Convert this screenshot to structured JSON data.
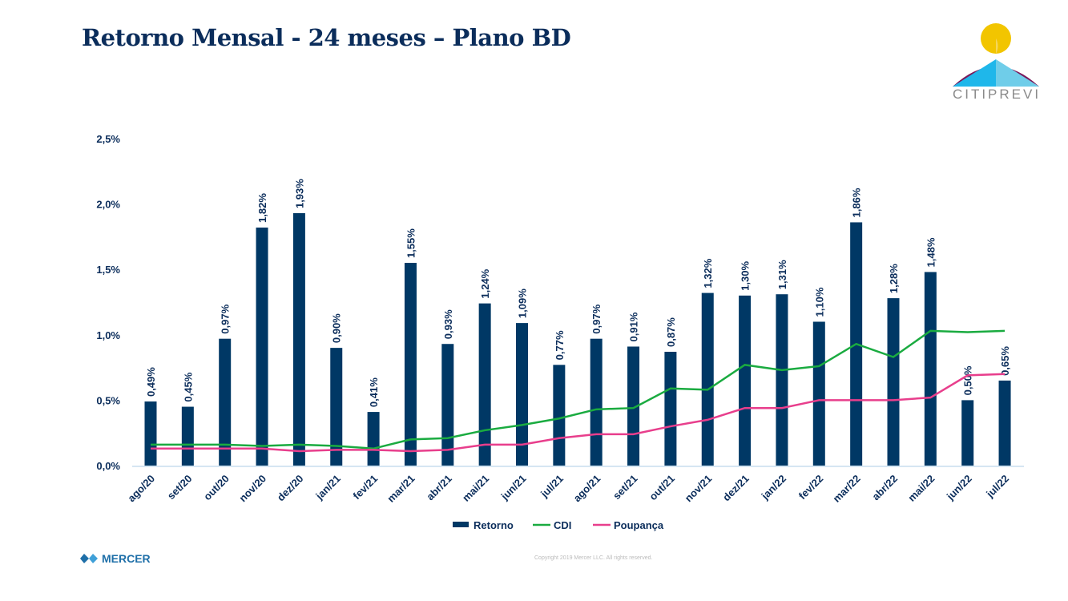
{
  "title": "Retorno Mensal - 24 meses – Plano BD",
  "logo_text": "CITIPREVI",
  "footer": {
    "brand": "MERCER",
    "copyright": "Copyright 2019 Mercer LLC. All rights reserved."
  },
  "colors": {
    "bar": "#003865",
    "cdi": "#1aab40",
    "poupanca": "#e83e8c",
    "title": "#0b2d5b"
  },
  "chart_data": {
    "type": "bar",
    "title": "",
    "ylim": [
      0,
      2.5
    ],
    "yticks": [
      "0,0%",
      "0,5%",
      "1,0%",
      "1,5%",
      "2,0%",
      "2,5%"
    ],
    "ytick_values": [
      0,
      0.5,
      1.0,
      1.5,
      2.0,
      2.5
    ],
    "legend_position": "bottom",
    "categories": [
      "ago/20",
      "set/20",
      "out/20",
      "nov/20",
      "dez/20",
      "jan/21",
      "fev/21",
      "mar/21",
      "abr/21",
      "mai/21",
      "jun/21",
      "jul/21",
      "ago/21",
      "set/21",
      "out/21",
      "nov/21",
      "dez/21",
      "jan/22",
      "fev/22",
      "mar/22",
      "abr/22",
      "mai/22",
      "jun/22",
      "jul/22"
    ],
    "series": [
      {
        "name": "Retorno",
        "type": "bar",
        "values": [
          0.49,
          0.45,
          0.97,
          1.82,
          1.93,
          0.9,
          0.41,
          1.55,
          0.93,
          1.24,
          1.09,
          0.77,
          0.97,
          0.91,
          0.87,
          1.32,
          1.3,
          1.31,
          1.1,
          1.86,
          1.28,
          1.48,
          0.5,
          0.65
        ],
        "labels": [
          "0,49%",
          "0,45%",
          "0,97%",
          "1,82%",
          "1,93%",
          "0,90%",
          "0,41%",
          "1,55%",
          "0,93%",
          "1,24%",
          "1,09%",
          "0,77%",
          "0,97%",
          "0,91%",
          "0,87%",
          "1,32%",
          "1,30%",
          "1,31%",
          "1,10%",
          "1,86%",
          "1,28%",
          "1,48%",
          "0,50%",
          "0,65%"
        ]
      },
      {
        "name": "CDI",
        "type": "line",
        "values": [
          0.16,
          0.16,
          0.16,
          0.15,
          0.16,
          0.15,
          0.13,
          0.2,
          0.21,
          0.27,
          0.31,
          0.36,
          0.43,
          0.44,
          0.59,
          0.58,
          0.77,
          0.73,
          0.76,
          0.93,
          0.83,
          1.03,
          1.02,
          1.03
        ]
      },
      {
        "name": "Poupança",
        "type": "line",
        "values": [
          0.13,
          0.13,
          0.13,
          0.13,
          0.11,
          0.12,
          0.12,
          0.11,
          0.12,
          0.16,
          0.16,
          0.21,
          0.24,
          0.24,
          0.3,
          0.35,
          0.44,
          0.44,
          0.5,
          0.5,
          0.5,
          0.52,
          0.69,
          0.7
        ]
      }
    ]
  }
}
